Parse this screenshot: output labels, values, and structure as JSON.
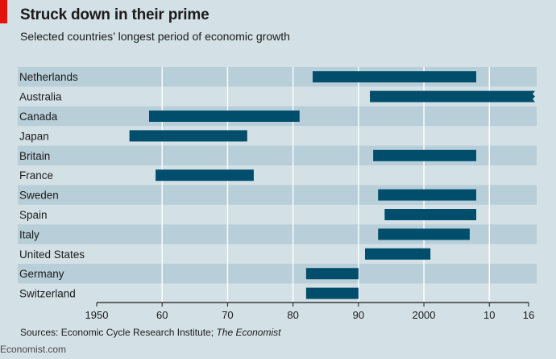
{
  "header": {
    "title": "Struck down in their prime",
    "subtitle": "Selected countries’ longest period of economic growth"
  },
  "footer": {
    "source_prefix": "Sources: Economic Cycle Research Institute; ",
    "source_italic": "The Economist",
    "brand": "Economist.com"
  },
  "colors": {
    "background": "#d3e0e6",
    "band": "#b8cfd9",
    "bar": "#004e6c",
    "accent_red": "#e3120b"
  },
  "chart_data": {
    "type": "bar",
    "orientation": "horizontal-range",
    "title": "Struck down in their prime",
    "subtitle": "Selected countries’ longest period of economic growth",
    "xlabel": "",
    "ylabel": "",
    "xlim": [
      1950,
      2016
    ],
    "x_ticks": [
      1950,
      1960,
      1970,
      1980,
      1990,
      2000,
      2010,
      2016
    ],
    "x_tick_labels": [
      "1950",
      "60",
      "70",
      "80",
      "90",
      "2000",
      "10",
      "16"
    ],
    "grid": "vertical",
    "categories": [
      "Netherlands",
      "Australia",
      "Canada",
      "Japan",
      "Britain",
      "France",
      "Sweden",
      "Spain",
      "Italy",
      "United States",
      "Germany",
      "Switzerland"
    ],
    "series": [
      {
        "values": [
          [
            1983.0,
            2008.0
          ],
          [
            1991.75,
            2016
          ],
          [
            1958.0,
            1981.0
          ],
          [
            1955.0,
            1973.0
          ],
          [
            1992.25,
            2008.0
          ],
          [
            1959.0,
            1974.0
          ],
          [
            1993.0,
            2008.0
          ],
          [
            1994.0,
            2008.0
          ],
          [
            1993.0,
            2007.0
          ],
          [
            1991.0,
            2001.0
          ],
          [
            1982.0,
            1990.0
          ],
          [
            1982.0,
            1990.0
          ]
        ],
        "ongoing": [
          false,
          true,
          false,
          false,
          false,
          false,
          false,
          false,
          false,
          false,
          false,
          false
        ]
      }
    ]
  }
}
